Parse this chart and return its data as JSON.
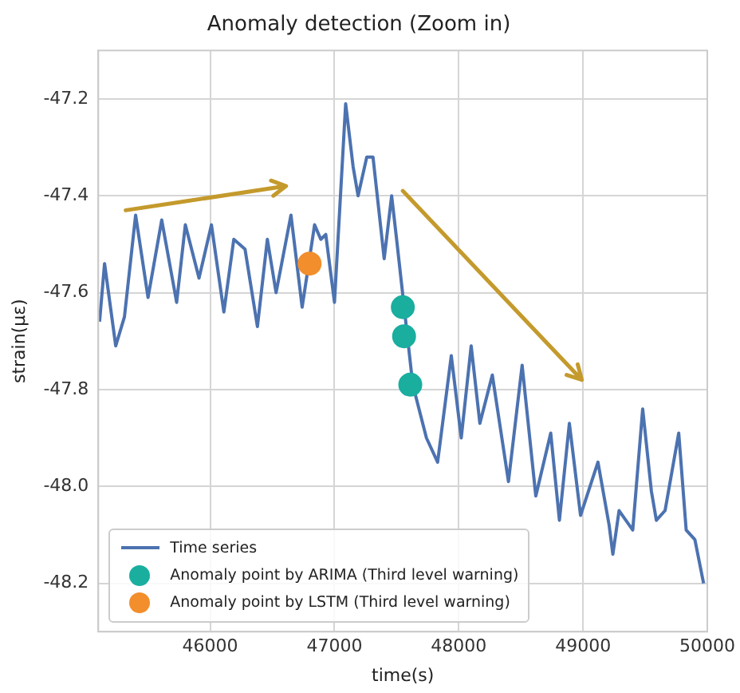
{
  "chart_data": {
    "type": "line",
    "title": "Anomaly detection (Zoom in)",
    "xlabel": "time(s)",
    "ylabel": "strain(με)",
    "xlim": [
      45100,
      50000
    ],
    "xticks": [
      46000,
      47000,
      48000,
      49000,
      50000
    ],
    "ylim": [
      -48.3,
      -47.1
    ],
    "yticks": [
      -47.2,
      -47.4,
      -47.6,
      -47.8,
      {
        "value": -48,
        "label": "-48.0"
      },
      -48.2
    ],
    "grid": true,
    "legend": "bottom left",
    "marker": "none",
    "line_style": "solid",
    "series": [
      {
        "name": "Time series",
        "type": "line",
        "color": "#4c72b0",
        "x": [
          45110,
          45150,
          45240,
          45310,
          45400,
          45500,
          45610,
          45730,
          45800,
          45910,
          46010,
          46110,
          46190,
          46280,
          46380,
          46460,
          46530,
          46650,
          46740,
          46840,
          46890,
          46930,
          47000,
          47090,
          47150,
          47190,
          47260,
          47310,
          47400,
          47460,
          47500,
          47630,
          47740,
          47830,
          47940,
          48020,
          48100,
          48170,
          48270,
          48400,
          48510,
          48620,
          48740,
          48810,
          48890,
          48980,
          49120,
          49210,
          49240,
          49290,
          49400,
          49480,
          49550,
          49590,
          49660,
          49770,
          49830,
          49900,
          49970
        ],
        "values": [
          -47.66,
          -47.54,
          -47.71,
          -47.65,
          -47.44,
          -47.61,
          -47.45,
          -47.62,
          -47.46,
          -47.57,
          -47.46,
          -47.64,
          -47.49,
          -47.51,
          -47.67,
          -47.49,
          -47.6,
          -47.44,
          -47.63,
          -47.46,
          -47.49,
          -47.48,
          -47.62,
          -47.21,
          -47.34,
          -47.4,
          -47.32,
          -47.32,
          -47.53,
          -47.4,
          -47.49,
          -47.79,
          -47.9,
          -47.95,
          -47.73,
          -47.9,
          -47.71,
          -47.87,
          -47.77,
          -47.99,
          -47.75,
          -48.02,
          -47.89,
          -48.07,
          -47.87,
          -48.06,
          -47.95,
          -48.08,
          -48.14,
          -48.05,
          -48.09,
          -47.84,
          -48.01,
          -48.07,
          -48.05,
          -47.89,
          -48.09,
          -48.11,
          -48.2
        ]
      },
      {
        "name": "Anomaly point by ARIMA (Third level warning)",
        "type": "scatter",
        "marker": "circle",
        "color": "#1aae9f",
        "x": [
          47550,
          47560,
          47610
        ],
        "values": [
          -47.63,
          -47.69,
          -47.79
        ]
      },
      {
        "name": "Anomaly point by LSTM (Third level warning)",
        "type": "scatter",
        "marker": "circle",
        "color": "#f28e2b",
        "x": [
          46800
        ],
        "values": [
          -47.54
        ]
      }
    ]
  }
}
